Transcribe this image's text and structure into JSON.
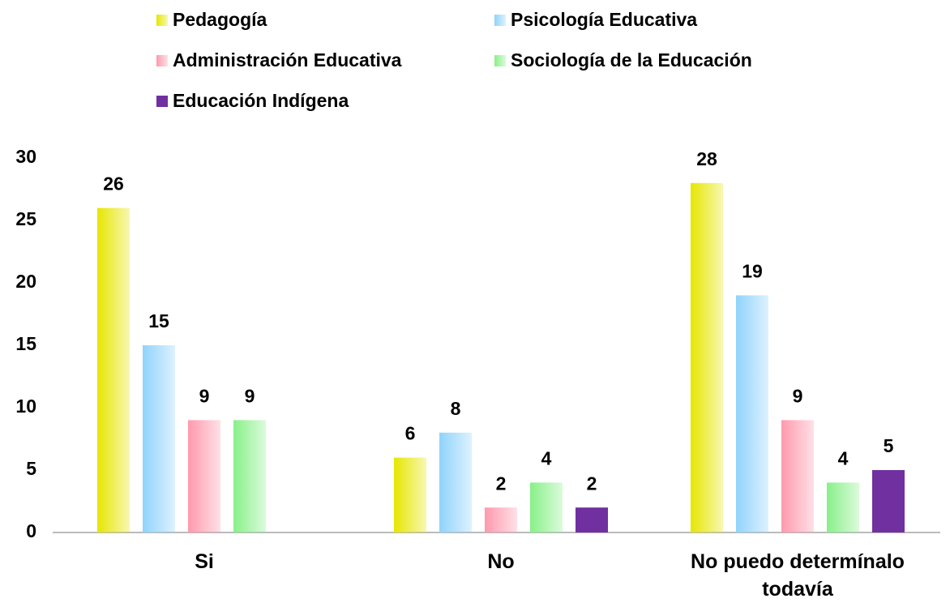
{
  "chart_data": {
    "type": "bar",
    "categories": [
      "Si",
      "No",
      "No puedo determínalo todavía"
    ],
    "series": [
      {
        "name": "Pedagogía",
        "color": "#e6e600",
        "values": [
          26,
          6,
          28
        ]
      },
      {
        "name": "Psicología Educativa",
        "color": "#8fd3fb",
        "values": [
          15,
          8,
          19
        ]
      },
      {
        "name": "Administración Educativa",
        "color": "#ff99ad",
        "values": [
          9,
          2,
          9
        ]
      },
      {
        "name": "Sociología de la Educación",
        "color": "#88f088",
        "values": [
          9,
          4,
          4
        ]
      },
      {
        "name": "Educación Indígena",
        "color": "#7030a0",
        "values": [
          null,
          2,
          5
        ]
      }
    ],
    "ylim": [
      0,
      30
    ],
    "yticks": [
      0,
      5,
      10,
      15,
      20,
      25,
      30
    ],
    "grid": false
  }
}
